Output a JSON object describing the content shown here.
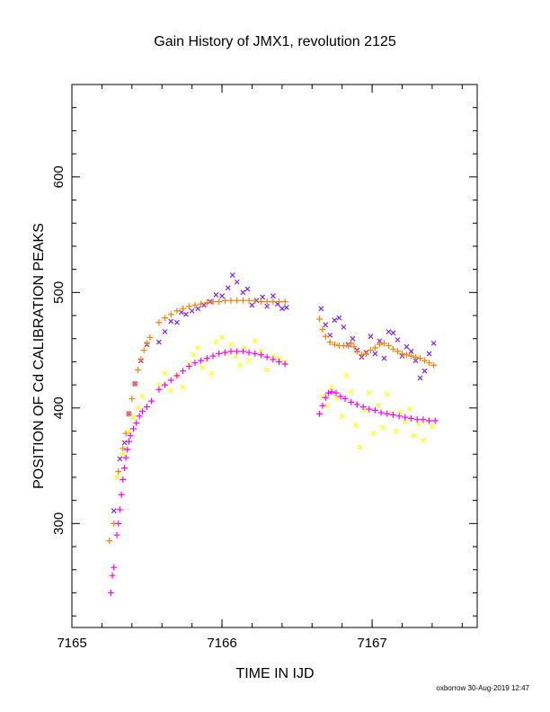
{
  "chart_data": {
    "type": "scatter",
    "title": "Gain History of JMX1, revolution 2125",
    "xlabel": "TIME IN IJD",
    "ylabel": "POSITION OF Cd CALIBRATION PEAKS",
    "xlim": [
      7165,
      7167.7
    ],
    "ylim": [
      210,
      680
    ],
    "x_ticks": [
      7165,
      7166,
      7167
    ],
    "y_ticks": [
      300,
      400,
      500,
      600
    ],
    "x_tick_labels": [
      "7165",
      "7166",
      "7167"
    ],
    "y_tick_labels": [
      "300",
      "400",
      "500",
      "600"
    ],
    "grid": false,
    "legend": "none",
    "series": [
      {
        "color": "#7f1fff",
        "marker": "x",
        "points": [
          [
            7165.28,
            311
          ],
          [
            7165.32,
            356
          ],
          [
            7165.35,
            370
          ],
          [
            7165.38,
            395
          ],
          [
            7165.42,
            421
          ],
          [
            7165.46,
            441
          ],
          [
            7165.5,
            455
          ],
          [
            7165.58,
            457
          ],
          [
            7165.62,
            466
          ],
          [
            7165.66,
            475
          ],
          [
            7165.7,
            474
          ],
          [
            7165.73,
            483
          ],
          [
            7165.76,
            481
          ],
          [
            7165.8,
            484
          ],
          [
            7165.84,
            486
          ],
          [
            7165.88,
            489
          ],
          [
            7165.92,
            492
          ],
          [
            7165.96,
            498
          ],
          [
            7166.0,
            497
          ],
          [
            7166.04,
            504
          ],
          [
            7166.07,
            515
          ],
          [
            7166.1,
            509
          ],
          [
            7166.14,
            500
          ],
          [
            7166.17,
            503
          ],
          [
            7166.2,
            489
          ],
          [
            7166.23,
            493
          ],
          [
            7166.27,
            496
          ],
          [
            7166.3,
            488
          ],
          [
            7166.34,
            497
          ],
          [
            7166.37,
            490
          ],
          [
            7166.4,
            486
          ],
          [
            7166.43,
            487
          ],
          [
            7166.66,
            486
          ],
          [
            7166.69,
            472
          ],
          [
            7166.72,
            463
          ],
          [
            7166.75,
            476
          ],
          [
            7166.78,
            478
          ],
          [
            7166.81,
            470
          ],
          [
            7166.84,
            455
          ],
          [
            7166.87,
            460
          ],
          [
            7166.9,
            450
          ],
          [
            7166.93,
            444
          ],
          [
            7166.96,
            448
          ],
          [
            7166.99,
            462
          ],
          [
            7167.02,
            447
          ],
          [
            7167.05,
            458
          ],
          [
            7167.08,
            443
          ],
          [
            7167.11,
            466
          ],
          [
            7167.14,
            465
          ],
          [
            7167.17,
            459
          ],
          [
            7167.2,
            445
          ],
          [
            7167.23,
            453
          ],
          [
            7167.26,
            449
          ],
          [
            7167.29,
            441
          ],
          [
            7167.32,
            426
          ],
          [
            7167.35,
            432
          ],
          [
            7167.38,
            447
          ],
          [
            7167.41,
            456
          ]
        ]
      },
      {
        "color": "#ff7f00",
        "marker": "+",
        "points": [
          [
            7165.25,
            285
          ],
          [
            7165.28,
            300
          ],
          [
            7165.31,
            345
          ],
          [
            7165.34,
            365
          ],
          [
            7165.36,
            378
          ],
          [
            7165.38,
            395
          ],
          [
            7165.4,
            408
          ],
          [
            7165.42,
            421
          ],
          [
            7165.44,
            433
          ],
          [
            7165.46,
            442
          ],
          [
            7165.48,
            450
          ],
          [
            7165.5,
            456
          ],
          [
            7165.52,
            461
          ],
          [
            7165.58,
            474
          ],
          [
            7165.62,
            478
          ],
          [
            7165.66,
            481
          ],
          [
            7165.7,
            484
          ],
          [
            7165.74,
            486
          ],
          [
            7165.78,
            488
          ],
          [
            7165.82,
            489
          ],
          [
            7165.86,
            490
          ],
          [
            7165.9,
            491
          ],
          [
            7165.94,
            492
          ],
          [
            7165.98,
            492
          ],
          [
            7166.02,
            493
          ],
          [
            7166.06,
            493
          ],
          [
            7166.1,
            493
          ],
          [
            7166.14,
            493
          ],
          [
            7166.18,
            493
          ],
          [
            7166.22,
            493
          ],
          [
            7166.26,
            492
          ],
          [
            7166.3,
            492
          ],
          [
            7166.34,
            492
          ],
          [
            7166.38,
            492
          ],
          [
            7166.42,
            492
          ],
          [
            7166.65,
            477
          ],
          [
            7166.67,
            468
          ],
          [
            7166.69,
            462
          ],
          [
            7166.72,
            457
          ],
          [
            7166.75,
            455
          ],
          [
            7166.78,
            454
          ],
          [
            7166.81,
            454
          ],
          [
            7166.84,
            454
          ],
          [
            7166.86,
            456
          ],
          [
            7166.88,
            453
          ],
          [
            7166.9,
            449
          ],
          [
            7166.93,
            446
          ],
          [
            7166.96,
            447
          ],
          [
            7166.99,
            450
          ],
          [
            7167.02,
            452
          ],
          [
            7167.05,
            455
          ],
          [
            7167.08,
            456
          ],
          [
            7167.11,
            454
          ],
          [
            7167.14,
            451
          ],
          [
            7167.17,
            449
          ],
          [
            7167.2,
            447
          ],
          [
            7167.23,
            446
          ],
          [
            7167.26,
            445
          ],
          [
            7167.29,
            444
          ],
          [
            7167.32,
            443
          ],
          [
            7167.35,
            441
          ],
          [
            7167.38,
            439
          ],
          [
            7167.41,
            437
          ]
        ]
      },
      {
        "color": "#ffff00",
        "marker": "x",
        "points": [
          [
            7165.3,
            340
          ],
          [
            7165.34,
            360
          ],
          [
            7165.38,
            380
          ],
          [
            7165.41,
            392
          ],
          [
            7165.44,
            400
          ],
          [
            7165.47,
            410
          ],
          [
            7165.58,
            420
          ],
          [
            7165.62,
            430
          ],
          [
            7165.66,
            415
          ],
          [
            7165.7,
            428
          ],
          [
            7165.74,
            418
          ],
          [
            7165.78,
            438
          ],
          [
            7165.81,
            446
          ],
          [
            7165.84,
            452
          ],
          [
            7165.87,
            435
          ],
          [
            7165.9,
            442
          ],
          [
            7165.93,
            430
          ],
          [
            7165.96,
            457
          ],
          [
            7166.0,
            461
          ],
          [
            7166.03,
            447
          ],
          [
            7166.06,
            455
          ],
          [
            7166.09,
            445
          ],
          [
            7166.12,
            437
          ],
          [
            7166.15,
            452
          ],
          [
            7166.18,
            441
          ],
          [
            7166.22,
            458
          ],
          [
            7166.26,
            449
          ],
          [
            7166.3,
            433
          ],
          [
            7166.34,
            445
          ],
          [
            7166.38,
            443
          ],
          [
            7166.42,
            440
          ],
          [
            7166.67,
            410
          ],
          [
            7166.7,
            402
          ],
          [
            7166.73,
            418
          ],
          [
            7166.76,
            409
          ],
          [
            7166.8,
            393
          ],
          [
            7166.83,
            428
          ],
          [
            7166.86,
            414
          ],
          [
            7166.89,
            385
          ],
          [
            7166.92,
            366
          ],
          [
            7166.95,
            398
          ],
          [
            7166.98,
            413
          ],
          [
            7167.01,
            378
          ],
          [
            7167.04,
            402
          ],
          [
            7167.07,
            383
          ],
          [
            7167.1,
            412
          ],
          [
            7167.13,
            395
          ],
          [
            7167.16,
            380
          ],
          [
            7167.19,
            396
          ],
          [
            7167.22,
            388
          ],
          [
            7167.25,
            399
          ],
          [
            7167.28,
            376
          ],
          [
            7167.31,
            386
          ],
          [
            7167.34,
            372
          ],
          [
            7167.37,
            390
          ],
          [
            7167.4,
            384
          ]
        ]
      },
      {
        "color": "#ff00ff",
        "marker": "+",
        "points": [
          [
            7165.26,
            240
          ],
          [
            7165.27,
            255
          ],
          [
            7165.28,
            262
          ],
          [
            7165.3,
            290
          ],
          [
            7165.31,
            300
          ],
          [
            7165.32,
            312
          ],
          [
            7165.33,
            325
          ],
          [
            7165.34,
            338
          ],
          [
            7165.35,
            348
          ],
          [
            7165.36,
            357
          ],
          [
            7165.37,
            364
          ],
          [
            7165.38,
            371
          ],
          [
            7165.39,
            376
          ],
          [
            7165.41,
            382
          ],
          [
            7165.43,
            387
          ],
          [
            7165.45,
            393
          ],
          [
            7165.47,
            397
          ],
          [
            7165.5,
            401
          ],
          [
            7165.53,
            406
          ],
          [
            7165.58,
            416
          ],
          [
            7165.62,
            420
          ],
          [
            7165.66,
            424
          ],
          [
            7165.7,
            428
          ],
          [
            7165.74,
            432
          ],
          [
            7165.78,
            436
          ],
          [
            7165.82,
            439
          ],
          [
            7165.86,
            441
          ],
          [
            7165.9,
            443
          ],
          [
            7165.94,
            445
          ],
          [
            7165.98,
            447
          ],
          [
            7166.02,
            448
          ],
          [
            7166.06,
            449
          ],
          [
            7166.1,
            449
          ],
          [
            7166.14,
            449
          ],
          [
            7166.18,
            448
          ],
          [
            7166.22,
            447
          ],
          [
            7166.26,
            446
          ],
          [
            7166.3,
            444
          ],
          [
            7166.34,
            442
          ],
          [
            7166.38,
            440
          ],
          [
            7166.42,
            438
          ],
          [
            7166.65,
            395
          ],
          [
            7166.67,
            402
          ],
          [
            7166.69,
            409
          ],
          [
            7166.71,
            413
          ],
          [
            7166.73,
            414
          ],
          [
            7166.76,
            413
          ],
          [
            7166.79,
            410
          ],
          [
            7166.82,
            408
          ],
          [
            7166.86,
            405
          ],
          [
            7166.9,
            403
          ],
          [
            7166.94,
            401
          ],
          [
            7166.98,
            399
          ],
          [
            7167.02,
            398
          ],
          [
            7167.06,
            396
          ],
          [
            7167.1,
            395
          ],
          [
            7167.14,
            394
          ],
          [
            7167.18,
            393
          ],
          [
            7167.22,
            392
          ],
          [
            7167.26,
            391
          ],
          [
            7167.3,
            390
          ],
          [
            7167.34,
            390
          ],
          [
            7167.38,
            389
          ],
          [
            7167.42,
            389
          ]
        ]
      }
    ]
  },
  "footer": {
    "credit": "oxborrow 30-Aug-2019 12:47"
  }
}
